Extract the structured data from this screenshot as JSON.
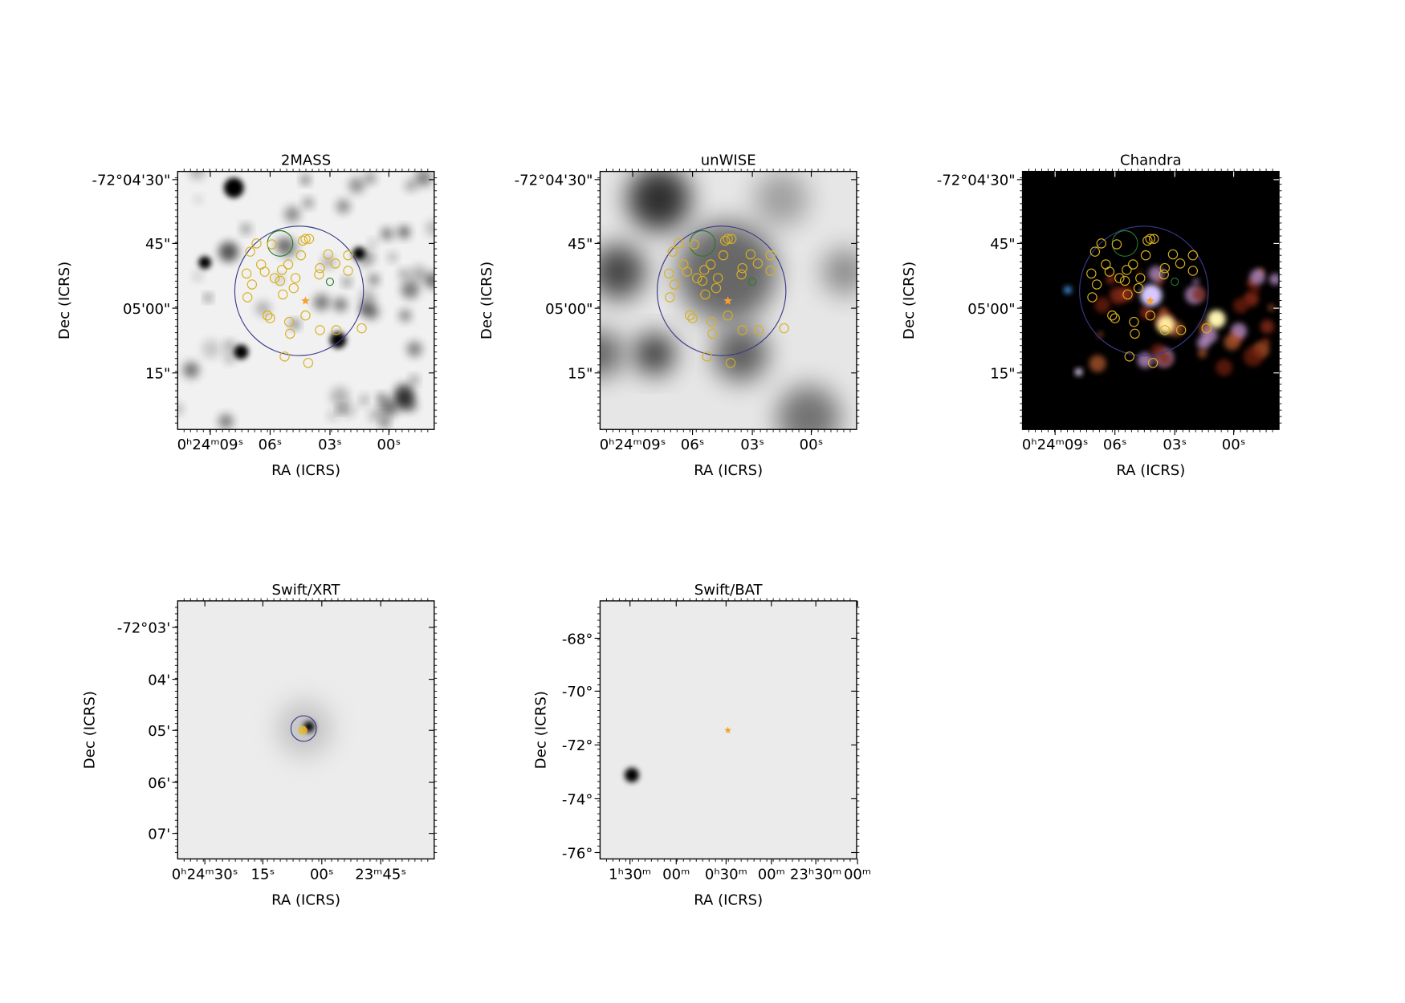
{
  "panels": [
    {
      "title": "2MASS",
      "xlabel": "RA (ICRS)",
      "ylabel": "Dec (ICRS)",
      "xticklabels": [
        "0ʰ24ᵐ09ˢ",
        "06ˢ",
        "03ˢ",
        "00ˢ"
      ],
      "yticklabels": [
        "-72°04'30\"",
        "45\"",
        "05'00\"",
        "15\""
      ]
    },
    {
      "title": "unWISE",
      "xlabel": "RA (ICRS)",
      "ylabel": "Dec (ICRS)",
      "xticklabels": [
        "0ʰ24ᵐ09ˢ",
        "06ˢ",
        "03ˢ",
        "00ˢ"
      ],
      "yticklabels": [
        "-72°04'30\"",
        "45\"",
        "05'00\"",
        "15\""
      ]
    },
    {
      "title": "Chandra",
      "xlabel": "RA (ICRS)",
      "ylabel": "Dec (ICRS)",
      "xticklabels": [
        "0ʰ24ᵐ09ˢ",
        "06ˢ",
        "03ˢ",
        "00ˢ"
      ],
      "yticklabels": [
        "-72°04'30\"",
        "45\"",
        "05'00\"",
        "15\""
      ]
    },
    {
      "title": "Swift/XRT",
      "xlabel": "RA (ICRS)",
      "ylabel": "Dec (ICRS)",
      "xticklabels": [
        "0ʰ24ᵐ30ˢ",
        "15ˢ",
        "00ˢ",
        "23ᵐ45ˢ"
      ],
      "yticklabels": [
        "-72°03'",
        "04'",
        "05'",
        "06'",
        "07'"
      ]
    },
    {
      "title": "Swift/BAT",
      "xlabel": "RA (ICRS)",
      "ylabel": "Dec (ICRS)",
      "xticklabels": [
        "1ʰ30ᵐ",
        "00ᵐ",
        "0ʰ30ᵐ",
        "00ᵐ",
        "23ʰ30ᵐ",
        "00ᵐ"
      ],
      "yticklabels": [
        "-68°",
        "-70°",
        "-72°",
        "-74°",
        "-76°"
      ]
    }
  ]
}
